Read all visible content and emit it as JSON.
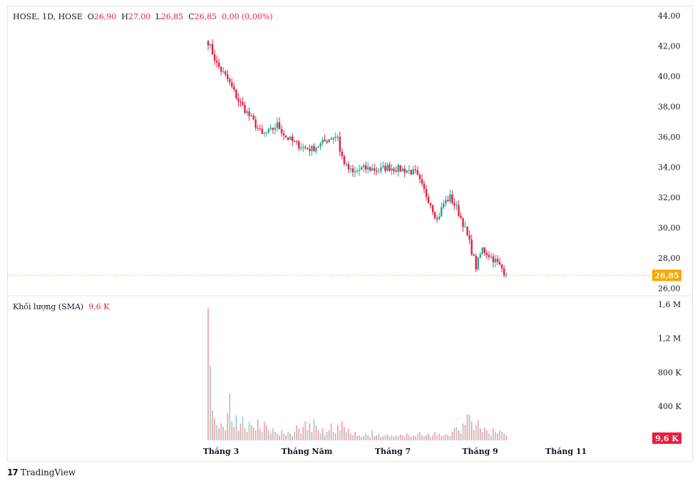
{
  "legend": {
    "symbol": "HOSE, 1D, HOSE",
    "o_label": "O",
    "o_value": "26,90",
    "h_label": "H",
    "h_value": "27,00",
    "l_label": "L",
    "l_value": "26,85",
    "c_label": "C",
    "c_value": "26,85",
    "change": "0,00 (0,00%)"
  },
  "volume_legend": {
    "label": "Khối lượng (SMA)",
    "value": "9,6 K"
  },
  "branding": {
    "logo": "17",
    "name": "TradingView"
  },
  "colors": {
    "up": "#26a69a",
    "down": "#ef5350",
    "down_strong": "#e91e42",
    "badge": "#f7a600",
    "vol_badge": "#e91e42"
  },
  "chart_data": {
    "type": "candlestick",
    "price_axis": {
      "ylim": [
        25.5,
        44.2
      ],
      "ticks": [
        "44,00",
        "42,00",
        "40,00",
        "38,00",
        "36,00",
        "34,00",
        "32,00",
        "30,00",
        "28,00",
        "26,00"
      ],
      "tick_values": [
        44,
        42,
        40,
        38,
        36,
        34,
        32,
        30,
        28,
        26
      ]
    },
    "volume_axis": {
      "ylim": [
        0,
        1.7
      ],
      "ticks": [
        "1,6 M",
        "1,2 M",
        "800 K",
        "400 K"
      ],
      "tick_values": [
        1.6,
        1.2,
        0.8,
        0.4
      ]
    },
    "x_ticks": [
      "Tháng 3",
      "Tháng Năm",
      "Tháng 7",
      "Tháng 9",
      "Tháng 11"
    ],
    "x_tick_days": [
      28,
      89,
      150,
      212,
      273
    ],
    "last_price": "26,85",
    "last_price_value": 26.85,
    "last_volume": "9,6 K",
    "last_volume_value": 0.0096,
    "days_visible": [
      0,
      300
    ],
    "close_anchors": [
      [
        0,
        42.3
      ],
      [
        4,
        40.8
      ],
      [
        9,
        39.8
      ],
      [
        14,
        38.4
      ],
      [
        18,
        37.6
      ],
      [
        21,
        37.0
      ],
      [
        25,
        36.1
      ],
      [
        29,
        36.4
      ],
      [
        32,
        36.8
      ],
      [
        36,
        36.0
      ],
      [
        40,
        35.6
      ],
      [
        44,
        35.3
      ],
      [
        48,
        35.2
      ],
      [
        52,
        35.5
      ],
      [
        56,
        35.9
      ],
      [
        60,
        36.1
      ],
      [
        61,
        35.0
      ],
      [
        64,
        34.0
      ],
      [
        67,
        33.6
      ],
      [
        71,
        33.9
      ],
      [
        75,
        33.9
      ],
      [
        79,
        33.8
      ],
      [
        83,
        34.0
      ],
      [
        87,
        33.9
      ],
      [
        92,
        33.8
      ],
      [
        96,
        33.6
      ],
      [
        99,
        32.7
      ],
      [
        103,
        31.6
      ],
      [
        106,
        30.5
      ],
      [
        109,
        31.6
      ],
      [
        112,
        32.0
      ],
      [
        115,
        31.3
      ],
      [
        118,
        30.3
      ],
      [
        121,
        29.0
      ],
      [
        124,
        27.4
      ],
      [
        127,
        28.6
      ],
      [
        130,
        28.2
      ],
      [
        133,
        27.8
      ],
      [
        136,
        27.3
      ],
      [
        138,
        26.85
      ]
    ],
    "volume_values": [
      1.56,
      0.88,
      0.35,
      0.26,
      0.18,
      0.14,
      0.2,
      0.16,
      0.12,
      0.32,
      0.55,
      0.22,
      0.16,
      0.3,
      0.12,
      0.2,
      0.28,
      0.14,
      0.1,
      0.22,
      0.18,
      0.15,
      0.12,
      0.25,
      0.14,
      0.1,
      0.22,
      0.18,
      0.12,
      0.08,
      0.14,
      0.1,
      0.08,
      0.06,
      0.12,
      0.08,
      0.06,
      0.1,
      0.08,
      0.05,
      0.1,
      0.18,
      0.14,
      0.08,
      0.16,
      0.22,
      0.12,
      0.2,
      0.1,
      0.25,
      0.18,
      0.12,
      0.08,
      0.14,
      0.06,
      0.1,
      0.12,
      0.2,
      0.1,
      0.08,
      0.18,
      0.12,
      0.22,
      0.16,
      0.1,
      0.14,
      0.08,
      0.06,
      0.1,
      0.05,
      0.06,
      0.04,
      0.05,
      0.08,
      0.06,
      0.04,
      0.12,
      0.05,
      0.06,
      0.08,
      0.04,
      0.05,
      0.06,
      0.07,
      0.05,
      0.06,
      0.04,
      0.06,
      0.05,
      0.07,
      0.06,
      0.05,
      0.08,
      0.06,
      0.04,
      0.06,
      0.05,
      0.08,
      0.1,
      0.06,
      0.05,
      0.06,
      0.08,
      0.04,
      0.06,
      0.1,
      0.06,
      0.08,
      0.05,
      0.06,
      0.07,
      0.06,
      0.05,
      0.1,
      0.15,
      0.16,
      0.12,
      0.08,
      0.2,
      0.18,
      0.31,
      0.3,
      0.22,
      0.12,
      0.18,
      0.24,
      0.14,
      0.1,
      0.15,
      0.12,
      0.08,
      0.06,
      0.14,
      0.1,
      0.08,
      0.12,
      0.1,
      0.08,
      0.06
    ]
  }
}
